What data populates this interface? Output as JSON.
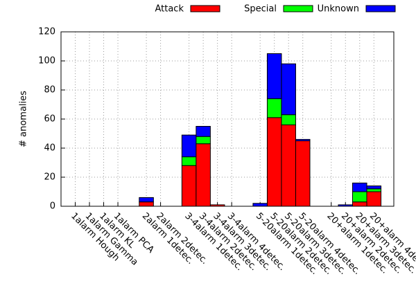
{
  "chart_data": {
    "type": "stacked-bar",
    "ylabel": "# anomalies",
    "categories": [
      null,
      "1alarm Hough",
      "1alarm Gamma",
      "1alarm KL",
      "1alarm PCA",
      null,
      "2alarm 1detec.",
      "2alarm 2detec.",
      null,
      "3-4alarm 1detec.",
      "3-4alarm 2detec.",
      "3-4alarm 3detec.",
      "3-4alarm 4detec.",
      null,
      "5-20alarm 1detec.",
      "5-20alarm 2detec.",
      "5-20alarm 3detec.",
      "5-20alarm 4detec.",
      null,
      "20+alarm 1detec.",
      "20+alarm 2detec.",
      "20+alarm 3detec.",
      "20+alarm 4detec."
    ],
    "series": [
      {
        "name": "Attack",
        "color": "#ff0000",
        "values": [
          null,
          0,
          0,
          0,
          0,
          null,
          3,
          0,
          null,
          28,
          43,
          1,
          0,
          null,
          0,
          61,
          56,
          45,
          null,
          0,
          0,
          3,
          10
        ]
      },
      {
        "name": "Special",
        "color": "#00ff00",
        "values": [
          null,
          0,
          0,
          0,
          0,
          null,
          0,
          0,
          null,
          6,
          5,
          0,
          0,
          null,
          0,
          13,
          7,
          0,
          null,
          0,
          0,
          7,
          2
        ]
      },
      {
        "name": "Unknown",
        "color": "#0000ff",
        "values": [
          null,
          0,
          0,
          0,
          0,
          null,
          3,
          0,
          null,
          15,
          7,
          0,
          0,
          null,
          2,
          31,
          35,
          1,
          null,
          0,
          1,
          6,
          2
        ]
      }
    ],
    "ylim": [
      0,
      120
    ],
    "yticks": [
      0,
      20,
      40,
      60,
      80,
      100,
      120
    ],
    "grid": true,
    "legend": "top"
  }
}
